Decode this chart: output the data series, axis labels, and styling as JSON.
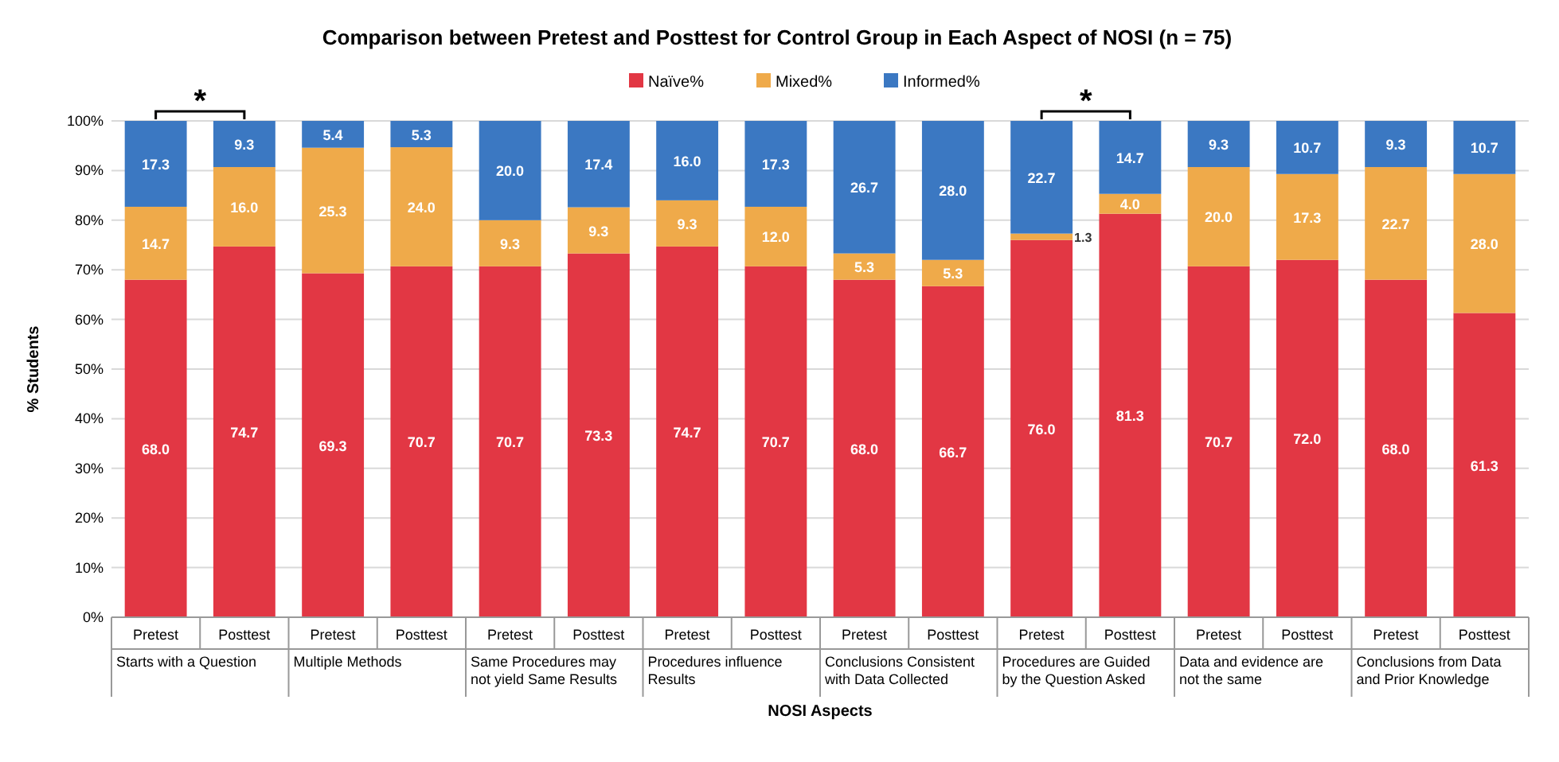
{
  "chart_data": {
    "type": "bar",
    "stacked": true,
    "title": "Comparison between Pretest and Posttest for Control Group in Each Aspect of NOSI (n = 75)",
    "xlabel": "NOSI Aspects",
    "ylabel": "% Students",
    "categories": [
      "Pretest",
      "Posttest",
      "Pretest",
      "Posttest",
      "Pretest",
      "Posttest",
      "Pretest",
      "Posttest",
      "Pretest",
      "Posttest",
      "Pretest",
      "Posttest",
      "Pretest",
      "Posttest",
      "Pretest",
      "Posttest"
    ],
    "series": [
      {
        "name": "Naïve%",
        "color": "#e23744",
        "values": [
          68.0,
          74.7,
          69.3,
          70.7,
          70.7,
          73.3,
          74.7,
          70.7,
          68.0,
          66.7,
          76.0,
          81.3,
          70.7,
          72.0,
          68.0,
          61.3
        ],
        "value_labels": [
          "68.0",
          "74.7",
          "69.3",
          "70.7",
          "70.7",
          "73.3",
          "74.7",
          "70.7",
          "68.0",
          "66.7",
          "76.0",
          "81.3",
          "70.7",
          "72.0",
          "68.0",
          "61.3"
        ]
      },
      {
        "name": "Mixed%",
        "color": "#efaa4a",
        "values": [
          14.7,
          16.0,
          25.3,
          24.0,
          9.3,
          9.3,
          9.3,
          12.0,
          5.3,
          5.3,
          1.3,
          4.0,
          20.0,
          17.3,
          22.7,
          28.0
        ],
        "value_labels": [
          "14.7",
          "16.0",
          "25.3",
          "24.0",
          "9.3",
          "9.3",
          "9.3",
          "12.0",
          "5.3",
          "5.3",
          "1.3",
          "4.0",
          "20.0",
          "17.3",
          "22.7",
          "28.0"
        ]
      },
      {
        "name": "Informed%",
        "color": "#3b78c2",
        "values": [
          17.3,
          9.3,
          5.4,
          5.3,
          20.0,
          17.4,
          16.0,
          17.3,
          26.7,
          28.0,
          22.7,
          14.7,
          9.3,
          10.7,
          9.3,
          10.7
        ],
        "value_labels": [
          "17.3",
          "9.3",
          "5.4",
          "5.3",
          "20.0",
          "17.4",
          "16.0",
          "17.3",
          "26.7",
          "28.0",
          "22.7",
          "14.7",
          "9.3",
          "10.7",
          "9.3",
          "10.7"
        ]
      }
    ],
    "annotations": [
      "Starts with a Question",
      "Multiple Methods",
      "Same Procedures may\nnot yield Same Results",
      "Procedures influence\nResults",
      "Conclusions Consistent\nwith Data Collected",
      "Procedures are Guided\nby the Question Asked",
      "Data and evidence are\nnot the same",
      "Conclusions from Data\nand Prior Knowledge",
      "*",
      "*"
    ],
    "legend": "top",
    "grid": "y",
    "ylim": [
      0,
      100
    ],
    "yticks": [
      {
        "value": 0,
        "label": "0%"
      },
      {
        "value": 10,
        "label": "10%"
      },
      {
        "value": 20,
        "label": "20%"
      },
      {
        "value": 30,
        "label": "30%"
      },
      {
        "value": 40,
        "label": "40%"
      },
      {
        "value": 50,
        "label": "50%"
      },
      {
        "value": 60,
        "label": "60%"
      },
      {
        "value": 70,
        "label": "70%"
      },
      {
        "value": 80,
        "label": "80%"
      },
      {
        "value": 90,
        "label": "90%"
      },
      {
        "value": 100,
        "label": "100%"
      }
    ]
  }
}
